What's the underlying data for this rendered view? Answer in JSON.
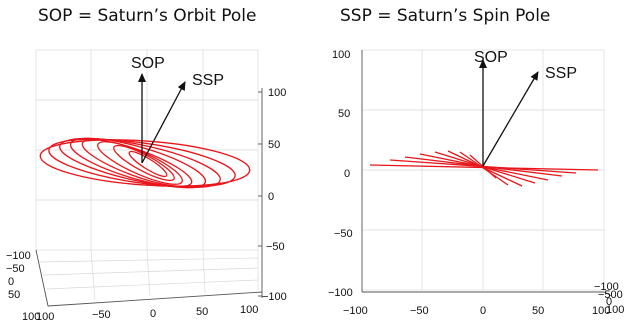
{
  "panels": {
    "left": {
      "title": "SOP = Saturn’s Orbit Pole",
      "vector_labels": {
        "sop": "SOP",
        "ssp": "SSP"
      },
      "z_ticks": [
        "100",
        "50",
        "0",
        "−50",
        "−100"
      ],
      "x_ticks": [
        "100",
        "−50",
        "0",
        "50",
        "100"
      ],
      "y_ticks": [
        "−100",
        "−50",
        "0",
        "50",
        "100"
      ]
    },
    "right": {
      "title": "SSP = Saturn’s Spin Pole",
      "vector_labels": {
        "sop": "SOP",
        "ssp": "SSP"
      },
      "y_ticks": [
        "100",
        "50",
        "0",
        "−50",
        "−100"
      ],
      "x_ticks": [
        "−100",
        "−50",
        "0",
        "50",
        "100"
      ],
      "corner_ticks": [
        "−100",
        "−500",
        "0",
        "100"
      ]
    }
  },
  "colors": {
    "orbits": "#e8161b",
    "vectors": "#111111",
    "grid": "#d9d9d9"
  },
  "orbit_count": 8
}
